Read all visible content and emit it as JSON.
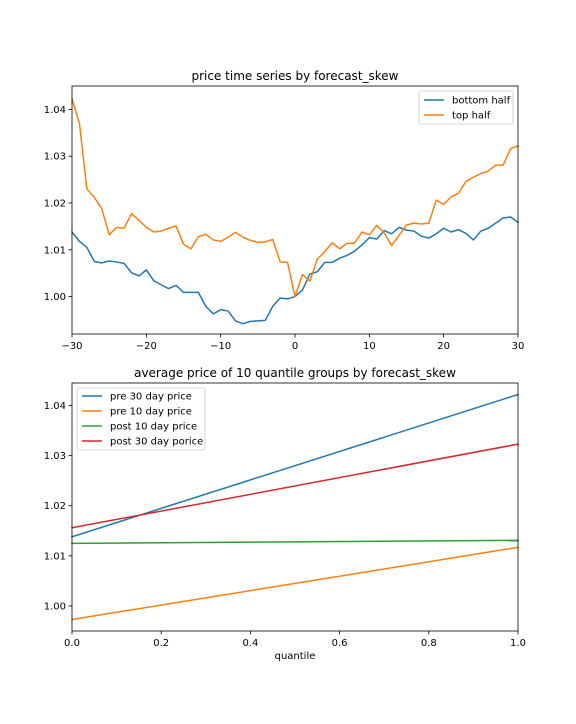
{
  "chart_data": [
    {
      "type": "line",
      "title": "price time series by forecast_skew",
      "xlabel": "",
      "ylabel": "",
      "xlim": [
        -30,
        30
      ],
      "ylim": [
        0.992,
        1.045
      ],
      "xticks": [
        -30,
        -20,
        -10,
        0,
        10,
        20,
        30
      ],
      "xtick_labels": [
        "−30",
        "−20",
        "−10",
        "0",
        "10",
        "20",
        "30"
      ],
      "yticks": [
        1.0,
        1.01,
        1.02,
        1.03,
        1.04
      ],
      "ytick_labels": [
        "1.00",
        "1.01",
        "1.02",
        "1.03",
        "1.04"
      ],
      "grid": false,
      "legend": "top-right",
      "x": [
        -30,
        -29,
        -28,
        -27,
        -26,
        -25,
        -24,
        -23,
        -22,
        -21,
        -20,
        -19,
        -18,
        -17,
        -16,
        -15,
        -14,
        -13,
        -12,
        -11,
        -10,
        -9,
        -8,
        -7,
        -6,
        -5,
        -4,
        -3,
        -2,
        -1,
        0,
        1,
        2,
        3,
        4,
        5,
        6,
        7,
        8,
        9,
        10,
        11,
        12,
        13,
        14,
        15,
        16,
        17,
        18,
        19,
        20,
        21,
        22,
        23,
        24,
        25,
        26,
        27,
        28,
        29,
        30
      ],
      "series": [
        {
          "name": "bottom half",
          "color": "#1f77b4",
          "values": [
            1.0138,
            1.0118,
            1.0105,
            1.0075,
            1.0072,
            1.0076,
            1.0074,
            1.0071,
            1.0051,
            1.0044,
            1.0057,
            1.0034,
            1.0025,
            1.0017,
            1.0024,
            1.0009,
            1.0009,
            1.0009,
            0.9979,
            0.9963,
            0.9972,
            0.9969,
            0.9948,
            0.9942,
            0.9947,
            0.9948,
            0.9949,
            0.9979,
            0.9997,
            0.9995,
            1.0,
            1.0014,
            1.0048,
            1.0053,
            1.0073,
            1.0073,
            1.0082,
            1.0088,
            1.0097,
            1.011,
            1.0126,
            1.0123,
            1.0141,
            1.0134,
            1.0148,
            1.0142,
            1.014,
            1.0129,
            1.0125,
            1.0134,
            1.0146,
            1.0138,
            1.0143,
            1.0135,
            1.0121,
            1.014,
            1.0146,
            1.0157,
            1.0168,
            1.017,
            1.0159
          ]
        },
        {
          "name": "top half",
          "color": "#ff7f0e",
          "values": [
            1.0422,
            1.037,
            1.023,
            1.0212,
            1.0188,
            1.0132,
            1.0148,
            1.0146,
            1.0177,
            1.0163,
            1.0148,
            1.0138,
            1.014,
            1.0146,
            1.0151,
            1.0112,
            1.0102,
            1.0128,
            1.0133,
            1.0121,
            1.0118,
            1.0127,
            1.0137,
            1.0127,
            1.012,
            1.0116,
            1.0117,
            1.0122,
            1.0074,
            1.0073,
            1.0,
            1.0047,
            1.0033,
            1.008,
            1.0096,
            1.0115,
            1.0102,
            1.0114,
            1.0114,
            1.0138,
            1.0132,
            1.0152,
            1.0136,
            1.0109,
            1.0131,
            1.0153,
            1.0157,
            1.0155,
            1.0157,
            1.0206,
            1.0197,
            1.0213,
            1.0221,
            1.0246,
            1.0255,
            1.0263,
            1.0268,
            1.0281,
            1.0281,
            1.0316,
            1.0322
          ]
        }
      ]
    },
    {
      "type": "line",
      "title": "average price of 10 quantile groups by forecast_skew",
      "xlabel": "quantile",
      "ylabel": "",
      "xlim": [
        0.0,
        1.0
      ],
      "ylim": [
        0.995,
        1.0445
      ],
      "xticks": [
        0.0,
        0.2,
        0.4,
        0.6,
        0.8,
        1.0
      ],
      "xtick_labels": [
        "0.0",
        "0.2",
        "0.4",
        "0.6",
        "0.8",
        "1.0"
      ],
      "yticks": [
        1.0,
        1.01,
        1.02,
        1.03,
        1.04
      ],
      "ytick_labels": [
        "1.00",
        "1.01",
        "1.02",
        "1.03",
        "1.04"
      ],
      "grid": false,
      "legend": "top-left",
      "x": [
        0.0,
        1.0
      ],
      "series": [
        {
          "name": "pre 30 day price",
          "color": "#1f77b4",
          "values": [
            1.0138,
            1.0422
          ]
        },
        {
          "name": "pre 10 day price",
          "color": "#ff7f0e",
          "values": [
            0.9973,
            1.0117
          ]
        },
        {
          "name": "post 10 day price",
          "color": "#2ca02c",
          "values": [
            1.0125,
            1.0131
          ]
        },
        {
          "name": "post 30 day porice",
          "color": "#d62728",
          "values": [
            1.0156,
            1.0323
          ]
        }
      ]
    }
  ]
}
